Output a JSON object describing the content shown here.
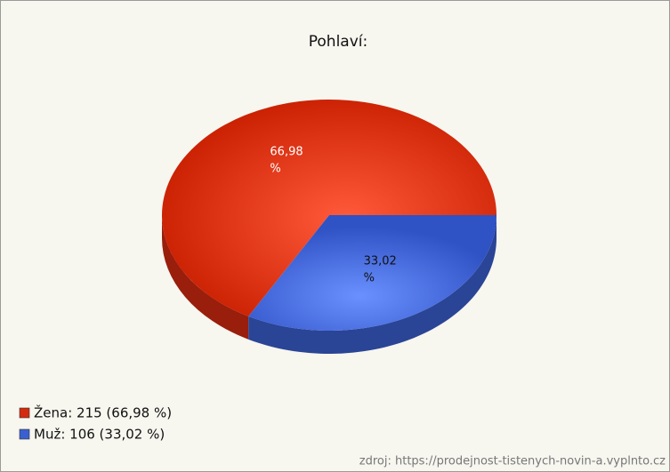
{
  "chart_data": {
    "type": "pie",
    "title": "Pohlaví:",
    "categories": [
      "Žena",
      "Muž"
    ],
    "values": [
      66.98,
      33.02
    ],
    "value_labels": [
      "66,98 %",
      "33,02 %"
    ],
    "colors": [
      "#d42a10",
      "#3a5fd0"
    ],
    "legend": [
      "Žena: 215 (66,98 %)",
      "Muž: 106 (33,02 %)"
    ],
    "legend_position": "bottom-left",
    "source": "zdroj: https://prodejnost-tistenych-novin-a.vyplnto.cz"
  }
}
